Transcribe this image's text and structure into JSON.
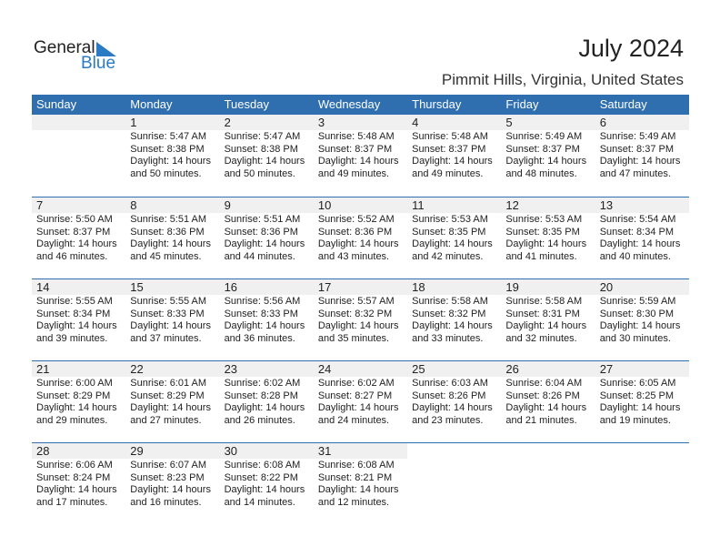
{
  "logo": {
    "general": "General",
    "blue": "Blue"
  },
  "title": "July 2024",
  "location": "Pimmit Hills, Virginia, United States",
  "days": [
    "Sunday",
    "Monday",
    "Tuesday",
    "Wednesday",
    "Thursday",
    "Friday",
    "Saturday"
  ],
  "weeks": [
    [
      null,
      {
        "d": "1",
        "sr": "Sunrise: 5:47 AM",
        "ss": "Sunset: 8:38 PM",
        "dl": "Daylight: 14 hours",
        "m": "and 50 minutes."
      },
      {
        "d": "2",
        "sr": "Sunrise: 5:47 AM",
        "ss": "Sunset: 8:38 PM",
        "dl": "Daylight: 14 hours",
        "m": "and 50 minutes."
      },
      {
        "d": "3",
        "sr": "Sunrise: 5:48 AM",
        "ss": "Sunset: 8:37 PM",
        "dl": "Daylight: 14 hours",
        "m": "and 49 minutes."
      },
      {
        "d": "4",
        "sr": "Sunrise: 5:48 AM",
        "ss": "Sunset: 8:37 PM",
        "dl": "Daylight: 14 hours",
        "m": "and 49 minutes."
      },
      {
        "d": "5",
        "sr": "Sunrise: 5:49 AM",
        "ss": "Sunset: 8:37 PM",
        "dl": "Daylight: 14 hours",
        "m": "and 48 minutes."
      },
      {
        "d": "6",
        "sr": "Sunrise: 5:49 AM",
        "ss": "Sunset: 8:37 PM",
        "dl": "Daylight: 14 hours",
        "m": "and 47 minutes."
      }
    ],
    [
      {
        "d": "7",
        "sr": "Sunrise: 5:50 AM",
        "ss": "Sunset: 8:37 PM",
        "dl": "Daylight: 14 hours",
        "m": "and 46 minutes."
      },
      {
        "d": "8",
        "sr": "Sunrise: 5:51 AM",
        "ss": "Sunset: 8:36 PM",
        "dl": "Daylight: 14 hours",
        "m": "and 45 minutes."
      },
      {
        "d": "9",
        "sr": "Sunrise: 5:51 AM",
        "ss": "Sunset: 8:36 PM",
        "dl": "Daylight: 14 hours",
        "m": "and 44 minutes."
      },
      {
        "d": "10",
        "sr": "Sunrise: 5:52 AM",
        "ss": "Sunset: 8:36 PM",
        "dl": "Daylight: 14 hours",
        "m": "and 43 minutes."
      },
      {
        "d": "11",
        "sr": "Sunrise: 5:53 AM",
        "ss": "Sunset: 8:35 PM",
        "dl": "Daylight: 14 hours",
        "m": "and 42 minutes."
      },
      {
        "d": "12",
        "sr": "Sunrise: 5:53 AM",
        "ss": "Sunset: 8:35 PM",
        "dl": "Daylight: 14 hours",
        "m": "and 41 minutes."
      },
      {
        "d": "13",
        "sr": "Sunrise: 5:54 AM",
        "ss": "Sunset: 8:34 PM",
        "dl": "Daylight: 14 hours",
        "m": "and 40 minutes."
      }
    ],
    [
      {
        "d": "14",
        "sr": "Sunrise: 5:55 AM",
        "ss": "Sunset: 8:34 PM",
        "dl": "Daylight: 14 hours",
        "m": "and 39 minutes."
      },
      {
        "d": "15",
        "sr": "Sunrise: 5:55 AM",
        "ss": "Sunset: 8:33 PM",
        "dl": "Daylight: 14 hours",
        "m": "and 37 minutes."
      },
      {
        "d": "16",
        "sr": "Sunrise: 5:56 AM",
        "ss": "Sunset: 8:33 PM",
        "dl": "Daylight: 14 hours",
        "m": "and 36 minutes."
      },
      {
        "d": "17",
        "sr": "Sunrise: 5:57 AM",
        "ss": "Sunset: 8:32 PM",
        "dl": "Daylight: 14 hours",
        "m": "and 35 minutes."
      },
      {
        "d": "18",
        "sr": "Sunrise: 5:58 AM",
        "ss": "Sunset: 8:32 PM",
        "dl": "Daylight: 14 hours",
        "m": "and 33 minutes."
      },
      {
        "d": "19",
        "sr": "Sunrise: 5:58 AM",
        "ss": "Sunset: 8:31 PM",
        "dl": "Daylight: 14 hours",
        "m": "and 32 minutes."
      },
      {
        "d": "20",
        "sr": "Sunrise: 5:59 AM",
        "ss": "Sunset: 8:30 PM",
        "dl": "Daylight: 14 hours",
        "m": "and 30 minutes."
      }
    ],
    [
      {
        "d": "21",
        "sr": "Sunrise: 6:00 AM",
        "ss": "Sunset: 8:29 PM",
        "dl": "Daylight: 14 hours",
        "m": "and 29 minutes."
      },
      {
        "d": "22",
        "sr": "Sunrise: 6:01 AM",
        "ss": "Sunset: 8:29 PM",
        "dl": "Daylight: 14 hours",
        "m": "and 27 minutes."
      },
      {
        "d": "23",
        "sr": "Sunrise: 6:02 AM",
        "ss": "Sunset: 8:28 PM",
        "dl": "Daylight: 14 hours",
        "m": "and 26 minutes."
      },
      {
        "d": "24",
        "sr": "Sunrise: 6:02 AM",
        "ss": "Sunset: 8:27 PM",
        "dl": "Daylight: 14 hours",
        "m": "and 24 minutes."
      },
      {
        "d": "25",
        "sr": "Sunrise: 6:03 AM",
        "ss": "Sunset: 8:26 PM",
        "dl": "Daylight: 14 hours",
        "m": "and 23 minutes."
      },
      {
        "d": "26",
        "sr": "Sunrise: 6:04 AM",
        "ss": "Sunset: 8:26 PM",
        "dl": "Daylight: 14 hours",
        "m": "and 21 minutes."
      },
      {
        "d": "27",
        "sr": "Sunrise: 6:05 AM",
        "ss": "Sunset: 8:25 PM",
        "dl": "Daylight: 14 hours",
        "m": "and 19 minutes."
      }
    ],
    [
      {
        "d": "28",
        "sr": "Sunrise: 6:06 AM",
        "ss": "Sunset: 8:24 PM",
        "dl": "Daylight: 14 hours",
        "m": "and 17 minutes."
      },
      {
        "d": "29",
        "sr": "Sunrise: 6:07 AM",
        "ss": "Sunset: 8:23 PM",
        "dl": "Daylight: 14 hours",
        "m": "and 16 minutes."
      },
      {
        "d": "30",
        "sr": "Sunrise: 6:08 AM",
        "ss": "Sunset: 8:22 PM",
        "dl": "Daylight: 14 hours",
        "m": "and 14 minutes."
      },
      {
        "d": "31",
        "sr": "Sunrise: 6:08 AM",
        "ss": "Sunset: 8:21 PM",
        "dl": "Daylight: 14 hours",
        "m": "and 12 minutes."
      },
      null,
      null,
      null
    ]
  ]
}
